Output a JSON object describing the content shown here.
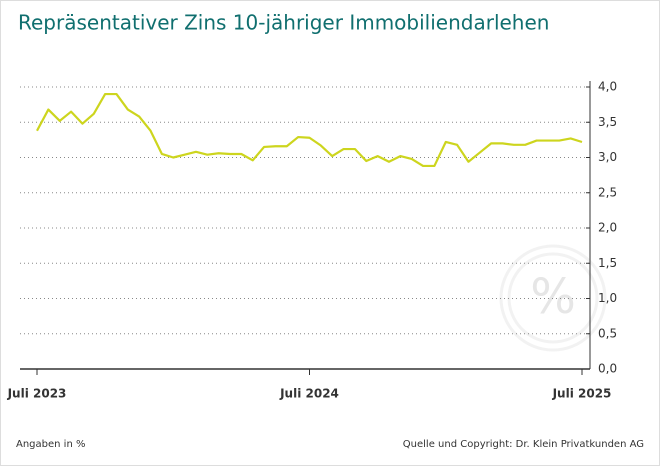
{
  "chart_data": {
    "type": "line",
    "title": "Repräsentativer Zins 10-jähriger Immobiliendarlehen",
    "note": "Angaben in %",
    "source": "Quelle und Copyright: Dr. Klein Privatkunden AG",
    "categories": [
      "Juli 2023",
      null,
      null,
      null,
      null,
      null,
      null,
      null,
      null,
      null,
      null,
      null,
      null,
      null,
      null,
      null,
      null,
      null,
      null,
      null,
      null,
      null,
      null,
      null,
      "Juli 2024",
      null,
      null,
      null,
      null,
      null,
      null,
      null,
      null,
      null,
      null,
      null,
      null,
      null,
      null,
      null,
      null,
      null,
      null,
      null,
      null,
      null,
      null,
      null,
      "Juli 2025"
    ],
    "values": [
      3.38,
      3.68,
      3.52,
      3.65,
      3.48,
      3.62,
      3.9,
      3.9,
      3.68,
      3.58,
      3.38,
      3.05,
      3.0,
      3.04,
      3.08,
      3.04,
      3.06,
      3.05,
      3.05,
      2.96,
      3.15,
      3.16,
      3.16,
      3.29,
      3.28,
      3.17,
      3.02,
      3.12,
      3.12,
      2.95,
      3.02,
      2.94,
      3.02,
      2.98,
      2.88,
      2.88,
      3.22,
      3.18,
      2.94,
      3.07,
      3.2,
      3.2,
      3.18,
      3.18,
      3.24,
      3.24,
      3.24,
      3.27,
      3.22
    ],
    "color": "#cdd51e",
    "ylim": [
      0,
      4
    ],
    "yticks": [
      {
        "value": 0,
        "label": "0,0"
      },
      {
        "value": 0.5,
        "label": "0,5"
      },
      {
        "value": 1,
        "label": "1,0"
      },
      {
        "value": 1.5,
        "label": "1,5"
      },
      {
        "value": 2,
        "label": "2,0"
      },
      {
        "value": 2.5,
        "label": "2,5"
      },
      {
        "value": 3,
        "label": "3,0"
      },
      {
        "value": 3.5,
        "label": "3,5"
      },
      {
        "value": 4,
        "label": "4,0"
      }
    ],
    "grid": true
  }
}
